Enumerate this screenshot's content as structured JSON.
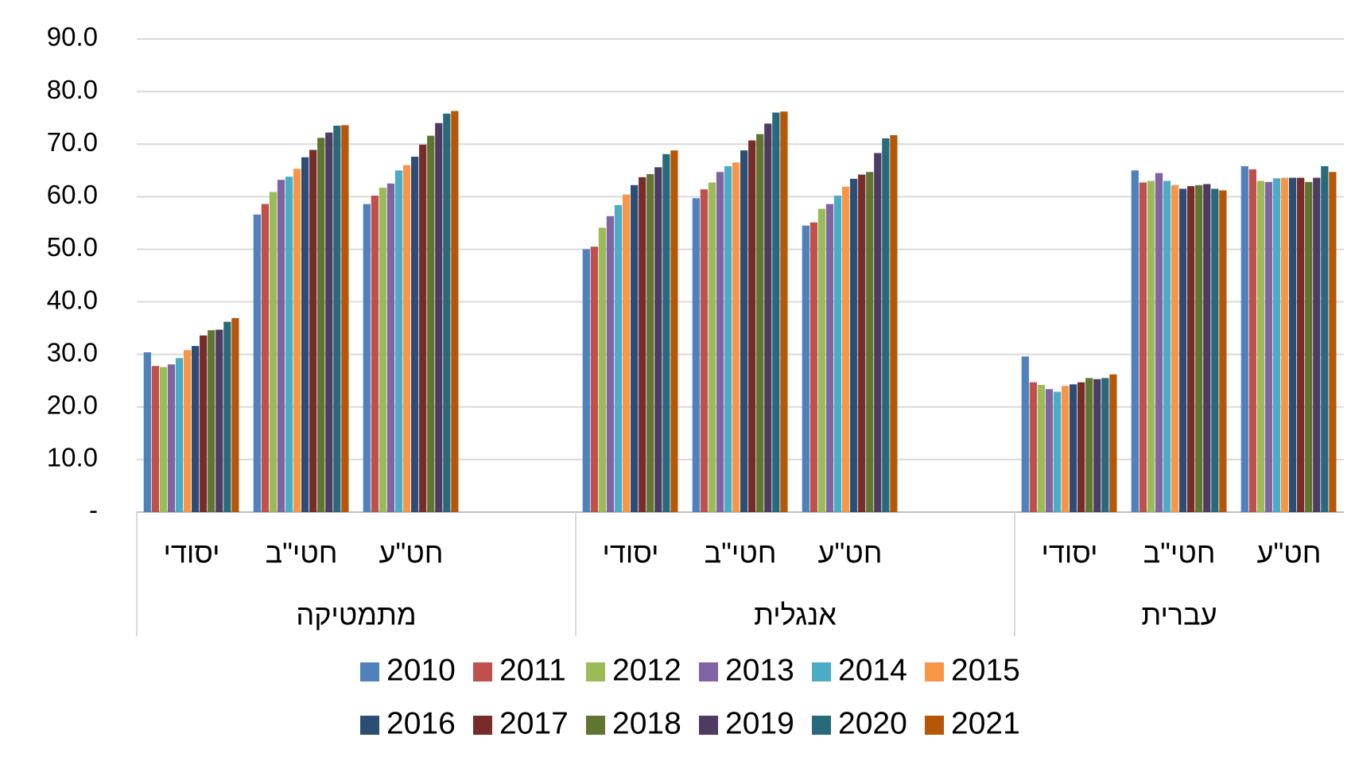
{
  "chart_data": {
    "type": "bar",
    "groups": [
      "מתמטיקה",
      "אנגלית",
      "עברית"
    ],
    "categories": [
      "יסודי",
      "חטי\"ב",
      "חט\"ע",
      "יסודי",
      "חטי\"ב",
      "חט\"ע",
      "יסודי",
      "חטי\"ב",
      "חט\"ע"
    ],
    "series": [
      {
        "name": "2010",
        "color": "#4f81bd",
        "values": [
          30.4,
          56.6,
          58.6,
          50.0,
          59.7,
          54.5,
          29.6,
          65.0,
          65.8
        ]
      },
      {
        "name": "2011",
        "color": "#c0504d",
        "values": [
          27.8,
          58.6,
          60.2,
          50.5,
          61.4,
          55.1,
          24.7,
          62.7,
          65.2
        ]
      },
      {
        "name": "2012",
        "color": "#9bbb59",
        "values": [
          27.6,
          60.9,
          61.7,
          54.1,
          62.7,
          57.7,
          24.2,
          63.0,
          63.0
        ]
      },
      {
        "name": "2013",
        "color": "#8064a2",
        "values": [
          28.1,
          63.2,
          62.5,
          56.3,
          64.7,
          58.6,
          23.4,
          64.5,
          62.8
        ]
      },
      {
        "name": "2014",
        "color": "#4bacc6",
        "values": [
          29.3,
          63.8,
          65.0,
          58.4,
          65.8,
          60.2,
          22.9,
          63.0,
          63.5
        ]
      },
      {
        "name": "2015",
        "color": "#f79646",
        "values": [
          30.8,
          65.3,
          66.0,
          60.4,
          66.5,
          61.9,
          24.0,
          62.2,
          63.6
        ]
      },
      {
        "name": "2016",
        "color": "#2c4d75",
        "values": [
          31.6,
          67.5,
          67.6,
          62.2,
          68.8,
          63.4,
          24.3,
          61.5,
          63.6
        ]
      },
      {
        "name": "2017",
        "color": "#772c2a",
        "values": [
          33.6,
          68.9,
          69.9,
          63.7,
          70.7,
          64.2,
          24.7,
          62.0,
          63.6
        ]
      },
      {
        "name": "2018",
        "color": "#5f7530",
        "values": [
          34.6,
          71.2,
          71.6,
          64.3,
          71.9,
          64.7,
          25.5,
          62.2,
          62.8
        ]
      },
      {
        "name": "2019",
        "color": "#4d3b62",
        "values": [
          34.7,
          72.2,
          74.0,
          65.6,
          73.9,
          68.3,
          25.3,
          62.4,
          63.6
        ]
      },
      {
        "name": "2020",
        "color": "#276a7c",
        "values": [
          36.2,
          73.5,
          75.8,
          68.1,
          76.0,
          71.1,
          25.5,
          61.5,
          65.8
        ]
      },
      {
        "name": "2021",
        "color": "#b65708",
        "values": [
          36.9,
          73.6,
          76.3,
          68.8,
          76.2,
          71.7,
          26.2,
          61.2,
          64.7
        ]
      }
    ],
    "ylim": [
      0,
      90
    ],
    "yticks": [
      {
        "value": 0,
        "label": "-"
      },
      {
        "value": 10,
        "label": "10.0"
      },
      {
        "value": 20,
        "label": "20.0"
      },
      {
        "value": 30,
        "label": "30.0"
      },
      {
        "value": 40,
        "label": "40.0"
      },
      {
        "value": 50,
        "label": "50.0"
      },
      {
        "value": 60,
        "label": "60.0"
      },
      {
        "value": 70,
        "label": "70.0"
      },
      {
        "value": 80,
        "label": "80.0"
      },
      {
        "value": 90,
        "label": "90.0"
      }
    ],
    "grid": true
  }
}
